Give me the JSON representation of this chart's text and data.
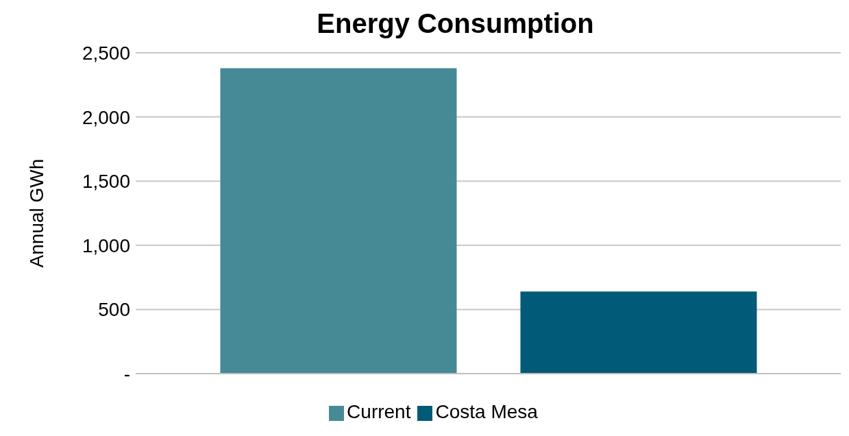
{
  "chart_data": {
    "type": "bar",
    "title": "Energy Consumption",
    "ylabel": "Annual GWh",
    "categories": [
      null
    ],
    "series": [
      {
        "name": "Current",
        "color": "#468a96",
        "values": [
          2380
        ]
      },
      {
        "name": "Costa Mesa",
        "color": "#005a78",
        "values": [
          640
        ]
      }
    ],
    "ylim": [
      0,
      2500
    ],
    "yticks": [
      {
        "value": 0,
        "label": "-"
      },
      500,
      {
        "value": 1000,
        "label": "1,000"
      },
      {
        "value": 1500,
        "label": "1,500"
      },
      {
        "value": 2000,
        "label": "2,000"
      },
      {
        "value": 2500,
        "label": "2,500"
      }
    ],
    "grid": "y",
    "legend": "bottom"
  }
}
